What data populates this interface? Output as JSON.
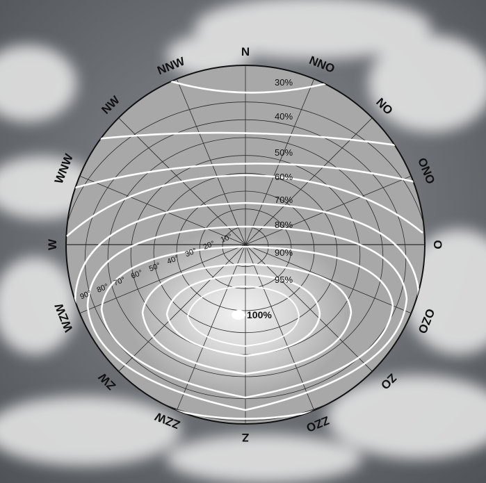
{
  "directions": {
    "N": "N",
    "NNO": "NNO",
    "NO": "NO",
    "ONO": "ONO",
    "O": "O",
    "OZO": "OZO",
    "ZO": "ZO",
    "ZZO": "ZZO",
    "Z": "Z",
    "ZZW": "ZZW",
    "ZW": "ZW",
    "WZW": "WZW",
    "W": "W",
    "WNW": "WNW",
    "NW": "NW",
    "NNW": "NNW"
  },
  "efficiency_labels": [
    "30%",
    "40%",
    "50%",
    "60%",
    "70%",
    "80%",
    "90%",
    "95%",
    "100%"
  ],
  "angle_labels": [
    "10°",
    "20°",
    "30°",
    "40°",
    "50°",
    "60°",
    "70°",
    "80°",
    "90°"
  ],
  "colors": {
    "disc": "#a8a8a8",
    "contour": "#ffffff",
    "grid": "#2a2a2a",
    "sky": "#6f7378",
    "cloud": "#e4e4e4"
  }
}
